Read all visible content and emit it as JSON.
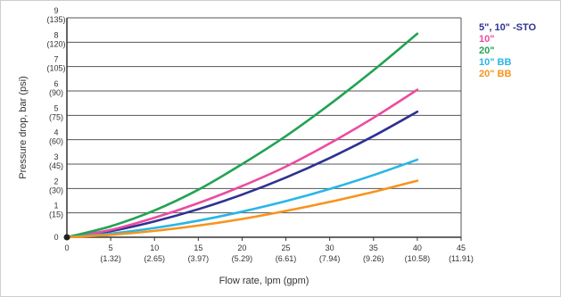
{
  "chart_data": {
    "type": "line",
    "xlabel": "Flow rate, lpm (gpm)",
    "ylabel": "Pressure drop, bar (psi)",
    "xlim": [
      0,
      45
    ],
    "ylim": [
      0,
      9
    ],
    "grid": "horizontal",
    "legend_position": "top-right",
    "x_ticks": [
      {
        "value": 0,
        "label": "0",
        "sub": ""
      },
      {
        "value": 5,
        "label": "5",
        "sub": "(1.32)"
      },
      {
        "value": 10,
        "label": "10",
        "sub": "(2.65)"
      },
      {
        "value": 15,
        "label": "15",
        "sub": "(3.97)"
      },
      {
        "value": 20,
        "label": "20",
        "sub": "(5.29)"
      },
      {
        "value": 25,
        "label": "25",
        "sub": "(6.61)"
      },
      {
        "value": 30,
        "label": "30",
        "sub": "(7.94)"
      },
      {
        "value": 35,
        "label": "35",
        "sub": "(9.26)"
      },
      {
        "value": 40,
        "label": "40",
        "sub": "(10.58)"
      },
      {
        "value": 45,
        "label": "45",
        "sub": "(11.91)"
      }
    ],
    "y_ticks": [
      {
        "value": 0,
        "label": "0",
        "sub": ""
      },
      {
        "value": 1,
        "label": "1",
        "sub": "(15)"
      },
      {
        "value": 2,
        "label": "2",
        "sub": "(30)"
      },
      {
        "value": 3,
        "label": "3",
        "sub": "(45)"
      },
      {
        "value": 4,
        "label": "4",
        "sub": "(60)"
      },
      {
        "value": 5,
        "label": "5",
        "sub": "(75)"
      },
      {
        "value": 6,
        "label": "6",
        "sub": "(90)"
      },
      {
        "value": 7,
        "label": "7",
        "sub": "(105)"
      },
      {
        "value": 8,
        "label": "8",
        "sub": "(120)"
      },
      {
        "value": 9,
        "label": "9",
        "sub": "(135)"
      }
    ],
    "series": [
      {
        "name": "5\", 10\" -STO",
        "color": "#2e3192",
        "x": [
          0,
          5,
          10,
          15,
          20,
          25,
          30,
          35,
          40
        ],
        "y": [
          0,
          0.25,
          0.65,
          1.15,
          1.75,
          2.45,
          3.25,
          4.15,
          5.15
        ]
      },
      {
        "name": "10\"",
        "color": "#ec4ba0",
        "x": [
          0,
          5,
          10,
          15,
          20,
          25,
          30,
          35,
          40
        ],
        "y": [
          0,
          0.3,
          0.8,
          1.4,
          2.1,
          2.9,
          3.85,
          4.9,
          6.05
        ]
      },
      {
        "name": "20\"",
        "color": "#21a353",
        "x": [
          0,
          5,
          10,
          15,
          20,
          25,
          30,
          35,
          40
        ],
        "y": [
          0,
          0.45,
          1.1,
          1.95,
          3.0,
          4.15,
          5.45,
          6.85,
          8.35
        ]
      },
      {
        "name": "10\" BB",
        "color": "#29b6e6",
        "x": [
          0,
          5,
          10,
          15,
          20,
          25,
          30,
          35,
          40
        ],
        "y": [
          0,
          0.15,
          0.38,
          0.68,
          1.05,
          1.48,
          1.98,
          2.55,
          3.18
        ]
      },
      {
        "name": "20\" BB",
        "color": "#f7941d",
        "x": [
          0,
          5,
          10,
          15,
          20,
          25,
          30,
          35,
          40
        ],
        "y": [
          0,
          0.1,
          0.26,
          0.48,
          0.75,
          1.08,
          1.45,
          1.86,
          2.32
        ]
      }
    ]
  }
}
